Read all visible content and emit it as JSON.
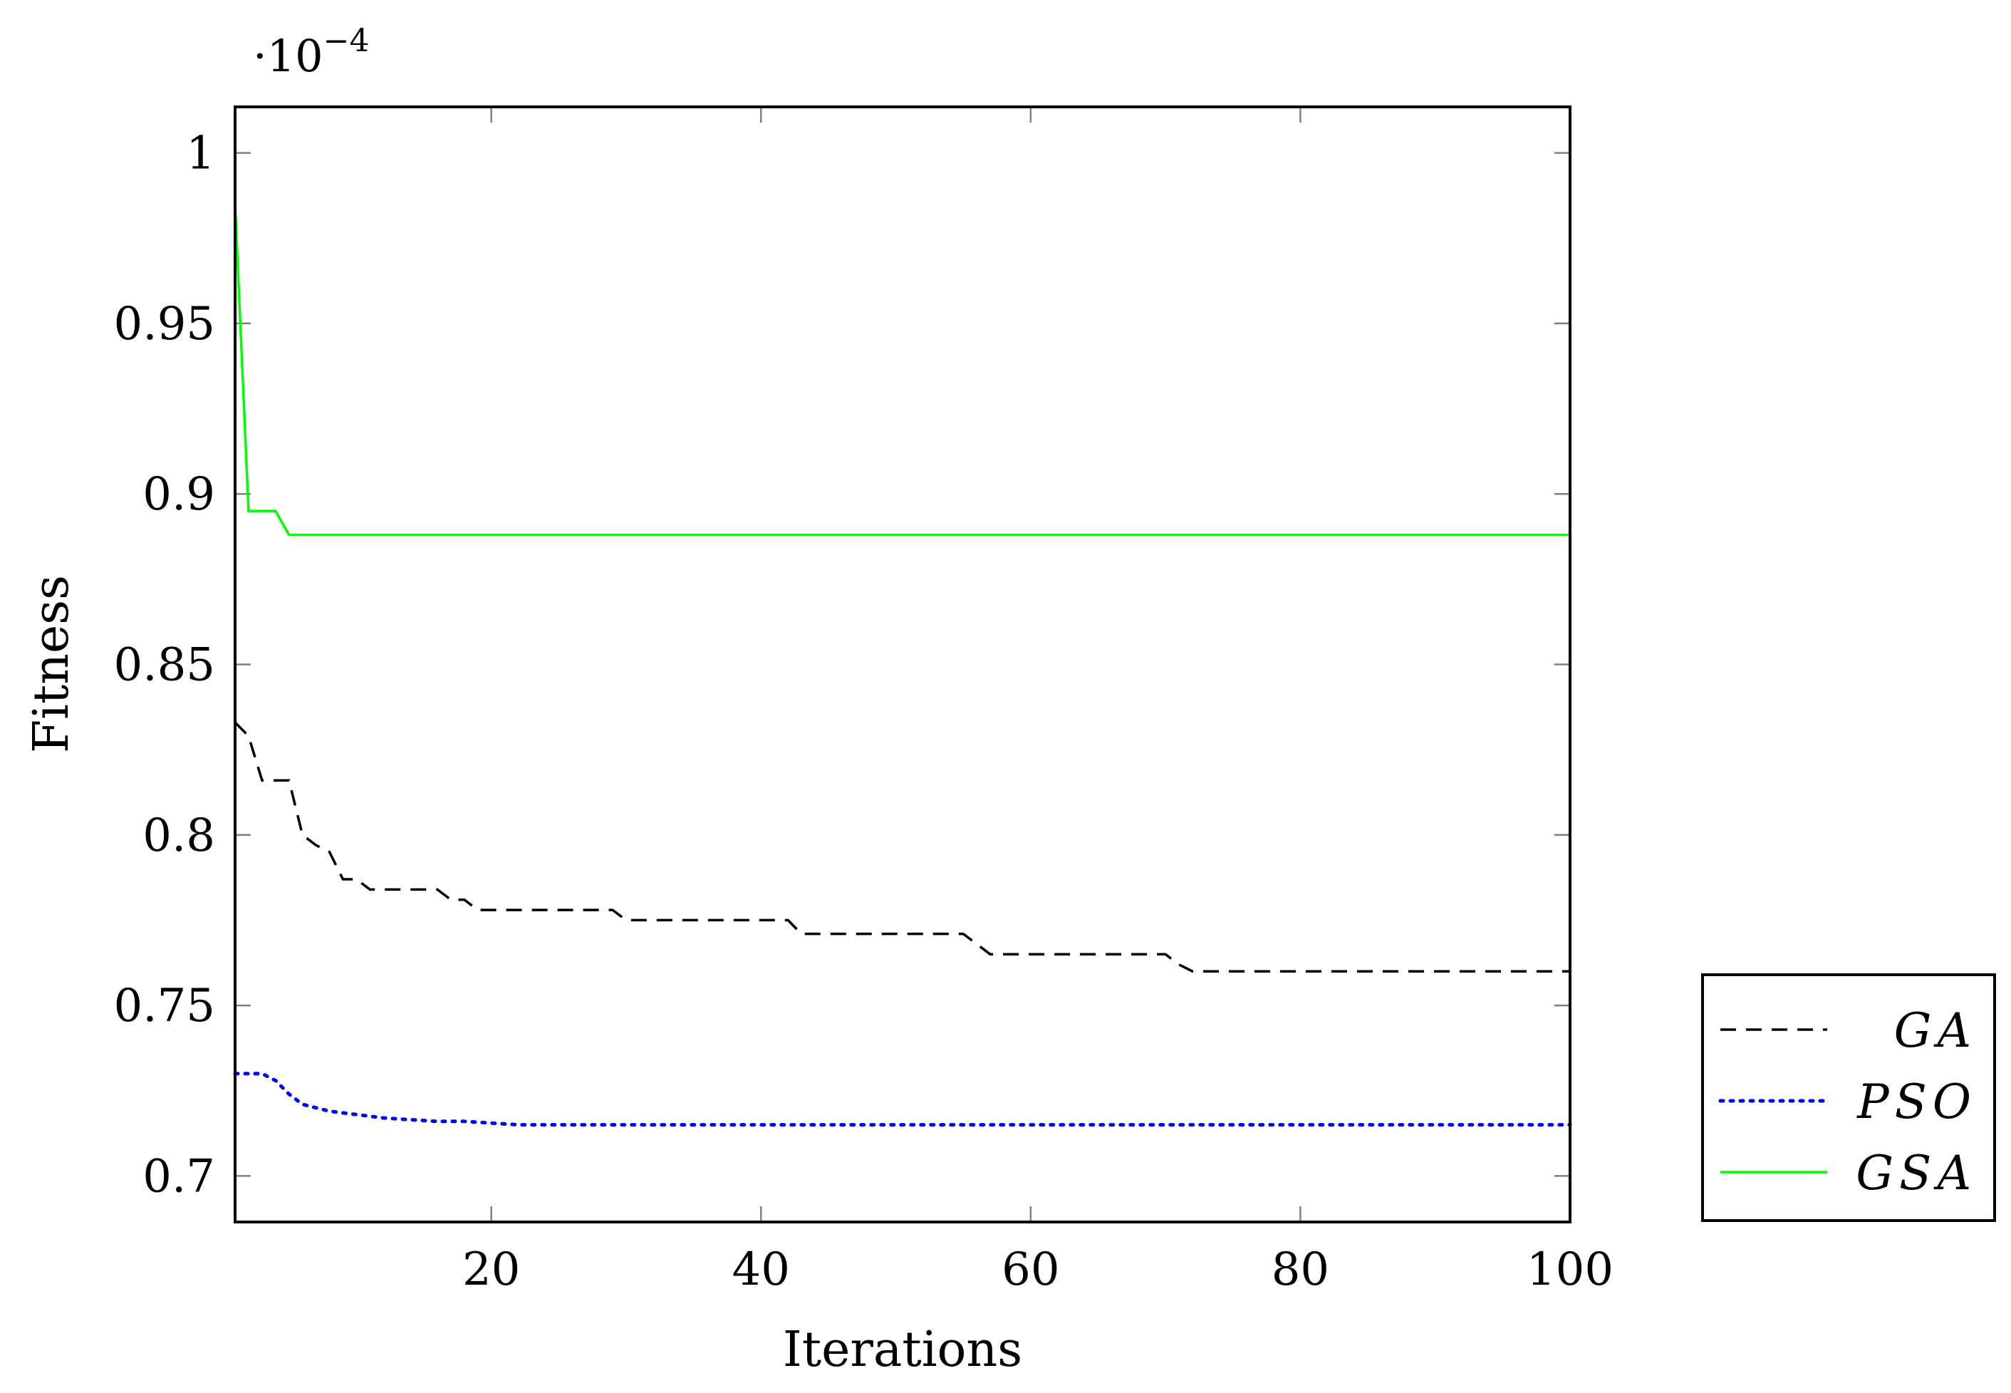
{
  "chart_data": {
    "type": "line",
    "xlabel": "Iterations",
    "ylabel": "Fitness",
    "y_scale_factor": "·10",
    "y_scale_exponent": "−4",
    "xlim": [
      1,
      100
    ],
    "ylim": [
      0.6865,
      1.0135
    ],
    "x_ticks": [
      20,
      40,
      60,
      80,
      100
    ],
    "x_tick_labels": [
      "20",
      "40",
      "60",
      "80",
      "100"
    ],
    "y_ticks": [
      0.7,
      0.75,
      0.8,
      0.85,
      0.9,
      0.95,
      1.0
    ],
    "y_tick_labels": [
      "0.7",
      "0.75",
      "0.8",
      "0.85",
      "0.9",
      "0.95",
      "1"
    ],
    "legend_position": "outside-right-bottom",
    "series": [
      {
        "name": "GA",
        "color": "#000000",
        "style": "dashed",
        "x": [
          1,
          2,
          3,
          4,
          5,
          6,
          7,
          8,
          9,
          10,
          11,
          16,
          17,
          18,
          19,
          29,
          30,
          42,
          43,
          55,
          56,
          57,
          70,
          71,
          72,
          100
        ],
        "y": [
          0.833,
          0.829,
          0.816,
          0.816,
          0.816,
          0.8,
          0.797,
          0.795,
          0.787,
          0.787,
          0.784,
          0.784,
          0.781,
          0.781,
          0.778,
          0.778,
          0.775,
          0.775,
          0.771,
          0.771,
          0.768,
          0.765,
          0.765,
          0.762,
          0.76,
          0.76
        ]
      },
      {
        "name": "PSO",
        "color": "#0000ff",
        "style": "dotted",
        "x": [
          1,
          2,
          3,
          4,
          5,
          6,
          7,
          8,
          9,
          10,
          11,
          12,
          14,
          16,
          18,
          20,
          22,
          100
        ],
        "y": [
          0.73,
          0.73,
          0.73,
          0.728,
          0.724,
          0.721,
          0.72,
          0.719,
          0.7185,
          0.718,
          0.7175,
          0.717,
          0.7165,
          0.716,
          0.716,
          0.7155,
          0.715,
          0.715
        ]
      },
      {
        "name": "GSA",
        "color": "#00ff00",
        "style": "solid",
        "x": [
          1,
          2,
          3,
          4,
          5,
          100
        ],
        "y": [
          0.985,
          0.895,
          0.895,
          0.895,
          0.888,
          0.888
        ]
      }
    ]
  }
}
